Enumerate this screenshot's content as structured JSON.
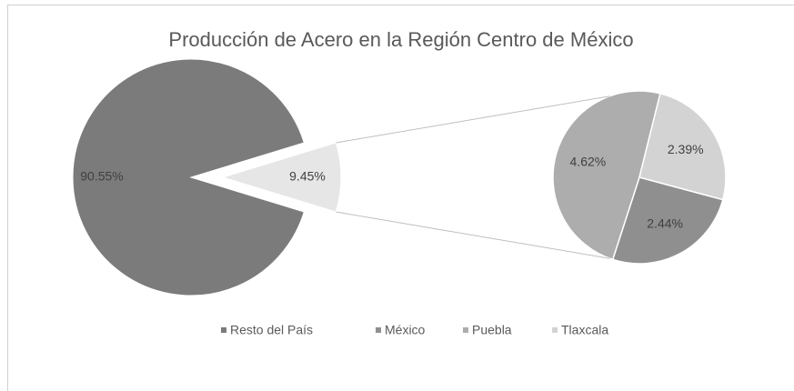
{
  "chart_data": {
    "type": "pie-of-pie",
    "title": "Producción de Acero en la Región Centro de México",
    "categories": [
      "Resto del País",
      "México",
      "Puebla",
      "Tlaxcala"
    ],
    "values": [
      90.55,
      2.44,
      4.62,
      2.39
    ],
    "value_labels": [
      "90.55%",
      "2.44%",
      "4.62%",
      "2.39%"
    ],
    "colors": [
      "#7b7b7b",
      "#8f8f8f",
      "#adadad",
      "#d3d3d3"
    ],
    "secondary_value": 9.45,
    "secondary_value_label": "9.45%",
    "secondary_color": "#e6e6e6",
    "legend": "bottom"
  }
}
